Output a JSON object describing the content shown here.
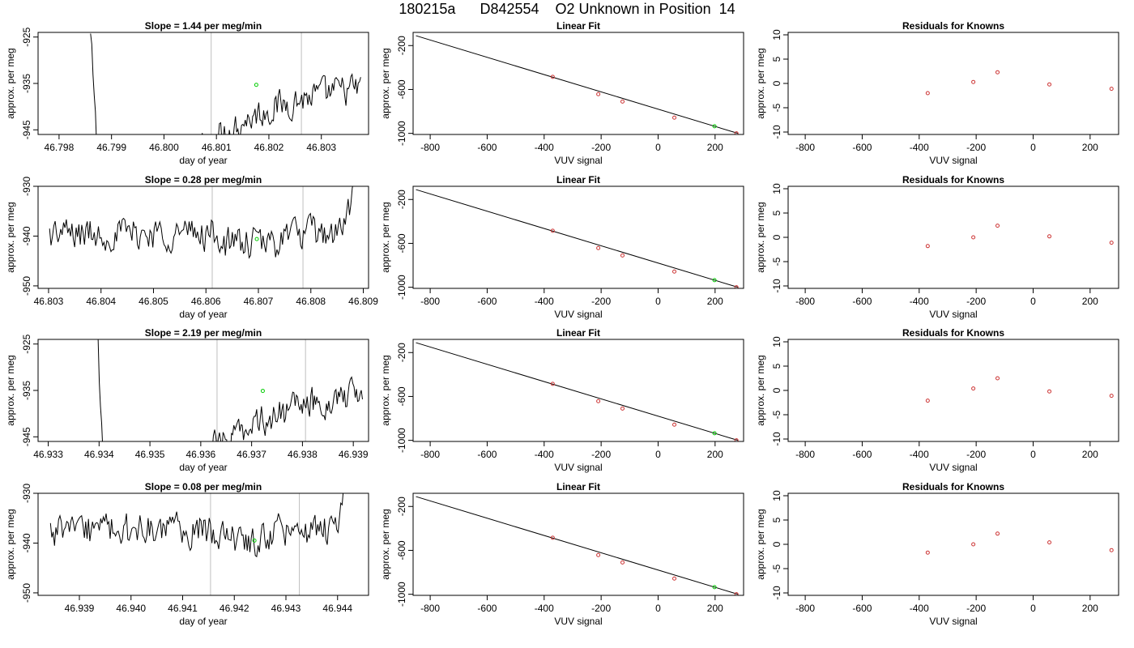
{
  "figure": {
    "title": "180215a      D842554    O2 Unknown in Position  14"
  },
  "colors": {
    "trace": "#000000",
    "marker_unknown": "#00cc00",
    "marker_known": "#cc3333",
    "guide_line": "#bebebe",
    "axis": "#000000"
  },
  "chart_data": [
    {
      "type": "line",
      "title": "Slope =  1.44  per meg/min",
      "xlabel": "day of year",
      "ylabel": "approx. per meg",
      "xlim": [
        46.7976,
        46.8039
      ],
      "ylim": [
        -946,
        -924
      ],
      "xticks": [
        46.798,
        46.799,
        46.8,
        46.801,
        46.802,
        46.803
      ],
      "xtick_labels": [
        "46.798",
        "46.799",
        "46.800",
        "46.801",
        "46.802",
        "46.803"
      ],
      "yticks": [
        -925,
        -935,
        -945
      ],
      "ytick_labels": [
        "-925",
        "-935",
        "-945"
      ],
      "vlines": [
        46.8009,
        46.80262
      ],
      "highlight_point": {
        "x": 46.80176,
        "y": -935.3
      },
      "series": [
        {
          "x_start": 46.7986,
          "x_end": 46.80375,
          "profile": "drop-rise",
          "start_y": -925,
          "steady_y": -934,
          "drop_end_x": 46.7989
        }
      ]
    },
    {
      "type": "scatter",
      "title": "Linear Fit",
      "xlabel": "VUV signal",
      "ylabel": "approx. per meg",
      "xlim": [
        -860,
        300
      ],
      "ylim": [
        -1010,
        -80
      ],
      "xticks": [
        -800,
        -600,
        -400,
        -200,
        0,
        200
      ],
      "xtick_labels": [
        "-800",
        "-600",
        "-400",
        "-200",
        "0",
        "200"
      ],
      "yticks": [
        -200,
        -600,
        -1000
      ],
      "ytick_labels": [
        "-200",
        "-600",
        "-1000"
      ],
      "fit_line": {
        "x": [
          -850,
          280
        ],
        "y": [
          -110,
          -1000
        ]
      },
      "known_points": {
        "x": [
          -370,
          -210,
          -125,
          57,
          275
        ],
        "y": [
          -485,
          -643,
          -710,
          -857,
          -1000
        ]
      },
      "unknown_point": {
        "x": 198,
        "y": -935
      }
    },
    {
      "type": "scatter",
      "title": "Residuals for Knowns",
      "xlabel": "VUV signal",
      "ylabel": "approx. per meg",
      "xlim": [
        -860,
        300
      ],
      "ylim": [
        -10.5,
        10.5
      ],
      "xticks": [
        -800,
        -600,
        -400,
        -200,
        0,
        200
      ],
      "xtick_labels": [
        "-800",
        "-600",
        "-400",
        "-200",
        "0",
        "200"
      ],
      "yticks": [
        10,
        5,
        0,
        -5,
        -10
      ],
      "ytick_labels": [
        "10",
        "5",
        "0",
        "-5",
        "-10"
      ],
      "points": {
        "x": [
          -370,
          -210,
          -125,
          57,
          275
        ],
        "y": [
          -2.0,
          0.3,
          2.3,
          -0.2,
          -1.1
        ]
      }
    },
    {
      "type": "line",
      "title": "Slope =  0.28  per meg/min",
      "xlabel": "day of year",
      "ylabel": "approx. per meg",
      "xlim": [
        46.8028,
        46.8091
      ],
      "ylim": [
        -950.5,
        -930
      ],
      "xticks": [
        46.803,
        46.804,
        46.805,
        46.806,
        46.807,
        46.808,
        46.809
      ],
      "xtick_labels": [
        "46.803",
        "46.804",
        "46.805",
        "46.806",
        "46.807",
        "46.808",
        "46.809"
      ],
      "yticks": [
        -930,
        -940,
        -950
      ],
      "ytick_labels": [
        "-930",
        "-940",
        "-950"
      ],
      "vlines": [
        46.80612,
        46.80785
      ],
      "highlight_point": {
        "x": 46.80697,
        "y": -940.6
      },
      "series": [
        {
          "x_start": 46.80302,
          "x_end": 46.80887,
          "profile": "flat-rise",
          "steady_y": -939.5
        }
      ]
    },
    {
      "type": "scatter",
      "title": "Linear Fit",
      "xlabel": "VUV signal",
      "ylabel": "approx. per meg",
      "xlim": [
        -860,
        300
      ],
      "ylim": [
        -1010,
        -80
      ],
      "xticks": [
        -800,
        -600,
        -400,
        -200,
        0,
        200
      ],
      "xtick_labels": [
        "-800",
        "-600",
        "-400",
        "-200",
        "0",
        "200"
      ],
      "yticks": [
        -200,
        -600,
        -1000
      ],
      "ytick_labels": [
        "-200",
        "-600",
        "-1000"
      ],
      "fit_line": {
        "x": [
          -850,
          280
        ],
        "y": [
          -110,
          -1000
        ]
      },
      "known_points": {
        "x": [
          -370,
          -210,
          -125,
          57,
          275
        ],
        "y": [
          -485,
          -643,
          -710,
          -857,
          -1000
        ]
      },
      "unknown_point": {
        "x": 198,
        "y": -935
      }
    },
    {
      "type": "scatter",
      "title": "Residuals for Knowns",
      "xlabel": "VUV signal",
      "ylabel": "approx. per meg",
      "xlim": [
        -860,
        300
      ],
      "ylim": [
        -10.5,
        10.5
      ],
      "xticks": [
        -800,
        -600,
        -400,
        -200,
        0,
        200
      ],
      "xtick_labels": [
        "-800",
        "-600",
        "-400",
        "-200",
        "0",
        "200"
      ],
      "yticks": [
        10,
        5,
        0,
        -5,
        -10
      ],
      "ytick_labels": [
        "10",
        "5",
        "0",
        "-5",
        "-10"
      ],
      "points": {
        "x": [
          -370,
          -210,
          -125,
          57,
          275
        ],
        "y": [
          -1.8,
          0.0,
          2.4,
          0.2,
          -1.1
        ]
      }
    },
    {
      "type": "line",
      "title": "Slope =  2.19  per meg/min",
      "xlabel": "day of year",
      "ylabel": "approx. per meg",
      "xlim": [
        46.9328,
        46.9393
      ],
      "ylim": [
        -946,
        -924
      ],
      "xticks": [
        46.933,
        46.934,
        46.935,
        46.936,
        46.937,
        46.938,
        46.939
      ],
      "xtick_labels": [
        "46.933",
        "46.934",
        "46.935",
        "46.936",
        "46.937",
        "46.938",
        "46.939"
      ],
      "yticks": [
        -925,
        -935,
        -945
      ],
      "ytick_labels": [
        "-925",
        "-935",
        "-945"
      ],
      "vlines": [
        46.93632,
        46.93806
      ],
      "highlight_point": {
        "x": 46.93722,
        "y": -935.1
      },
      "series": [
        {
          "x_start": 46.93398,
          "x_end": 46.93918,
          "profile": "drop-rise",
          "start_y": -925,
          "steady_y": -934,
          "drop_end_x": 46.9342
        }
      ]
    },
    {
      "type": "scatter",
      "title": "Linear Fit",
      "xlabel": "VUV signal",
      "ylabel": "approx. per meg",
      "xlim": [
        -860,
        300
      ],
      "ylim": [
        -1010,
        -80
      ],
      "xticks": [
        -800,
        -600,
        -400,
        -200,
        0,
        200
      ],
      "xtick_labels": [
        "-800",
        "-600",
        "-400",
        "-200",
        "0",
        "200"
      ],
      "yticks": [
        -200,
        -600,
        -1000
      ],
      "ytick_labels": [
        "-200",
        "-600",
        "-1000"
      ],
      "fit_line": {
        "x": [
          -850,
          280
        ],
        "y": [
          -110,
          -1000
        ]
      },
      "known_points": {
        "x": [
          -370,
          -210,
          -125,
          57,
          275
        ],
        "y": [
          -485,
          -643,
          -710,
          -857,
          -1000
        ]
      },
      "unknown_point": {
        "x": 198,
        "y": -935
      }
    },
    {
      "type": "scatter",
      "title": "Residuals for Knowns",
      "xlabel": "VUV signal",
      "ylabel": "approx. per meg",
      "xlim": [
        -860,
        300
      ],
      "ylim": [
        -10.5,
        10.5
      ],
      "xticks": [
        -800,
        -600,
        -400,
        -200,
        0,
        200
      ],
      "xtick_labels": [
        "-800",
        "-600",
        "-400",
        "-200",
        "0",
        "200"
      ],
      "yticks": [
        10,
        5,
        0,
        -5,
        -10
      ],
      "ytick_labels": [
        "10",
        "5",
        "0",
        "-5",
        "-10"
      ],
      "points": {
        "x": [
          -370,
          -210,
          -125,
          57,
          275
        ],
        "y": [
          -2.1,
          0.4,
          2.5,
          -0.2,
          -1.1
        ]
      }
    },
    {
      "type": "line",
      "title": "Slope =  0.08  per meg/min",
      "xlabel": "day of year",
      "ylabel": "approx. per meg",
      "xlim": [
        46.9382,
        46.9446
      ],
      "ylim": [
        -950.5,
        -930
      ],
      "xticks": [
        46.939,
        46.94,
        46.941,
        46.942,
        46.943,
        46.944
      ],
      "xtick_labels": [
        "46.939",
        "46.940",
        "46.941",
        "46.942",
        "46.943",
        "46.944"
      ],
      "yticks": [
        -930,
        -940,
        -950
      ],
      "ytick_labels": [
        "-930",
        "-940",
        "-950"
      ],
      "vlines": [
        46.94154,
        46.94326
      ],
      "highlight_point": {
        "x": 46.94239,
        "y": -939.5
      },
      "series": [
        {
          "x_start": 46.93844,
          "x_end": 46.94422,
          "profile": "flat-rise",
          "steady_y": -937.5
        }
      ]
    },
    {
      "type": "scatter",
      "title": "Linear Fit",
      "xlabel": "VUV signal",
      "ylabel": "approx. per meg",
      "xlim": [
        -860,
        300
      ],
      "ylim": [
        -1010,
        -80
      ],
      "xticks": [
        -800,
        -600,
        -400,
        -200,
        0,
        200
      ],
      "xtick_labels": [
        "-800",
        "-600",
        "-400",
        "-200",
        "0",
        "200"
      ],
      "yticks": [
        -200,
        -600,
        -1000
      ],
      "ytick_labels": [
        "-200",
        "-600",
        "-1000"
      ],
      "fit_line": {
        "x": [
          -850,
          280
        ],
        "y": [
          -110,
          -1000
        ]
      },
      "known_points": {
        "x": [
          -370,
          -210,
          -125,
          57,
          275
        ],
        "y": [
          -485,
          -643,
          -710,
          -857,
          -1000
        ]
      },
      "unknown_point": {
        "x": 198,
        "y": -935
      }
    },
    {
      "type": "scatter",
      "title": "Residuals for Knowns",
      "xlabel": "VUV signal",
      "ylabel": "approx. per meg",
      "xlim": [
        -860,
        300
      ],
      "ylim": [
        -10.5,
        10.5
      ],
      "xticks": [
        -800,
        -600,
        -400,
        -200,
        0,
        200
      ],
      "xtick_labels": [
        "-800",
        "-600",
        "-400",
        "-200",
        "0",
        "200"
      ],
      "yticks": [
        10,
        5,
        0,
        -5,
        -10
      ],
      "ytick_labels": [
        "10",
        "5",
        "0",
        "-5",
        "-10"
      ],
      "points": {
        "x": [
          -370,
          -210,
          -125,
          57,
          275
        ],
        "y": [
          -1.7,
          0.0,
          2.2,
          0.4,
          -1.2
        ]
      }
    }
  ]
}
